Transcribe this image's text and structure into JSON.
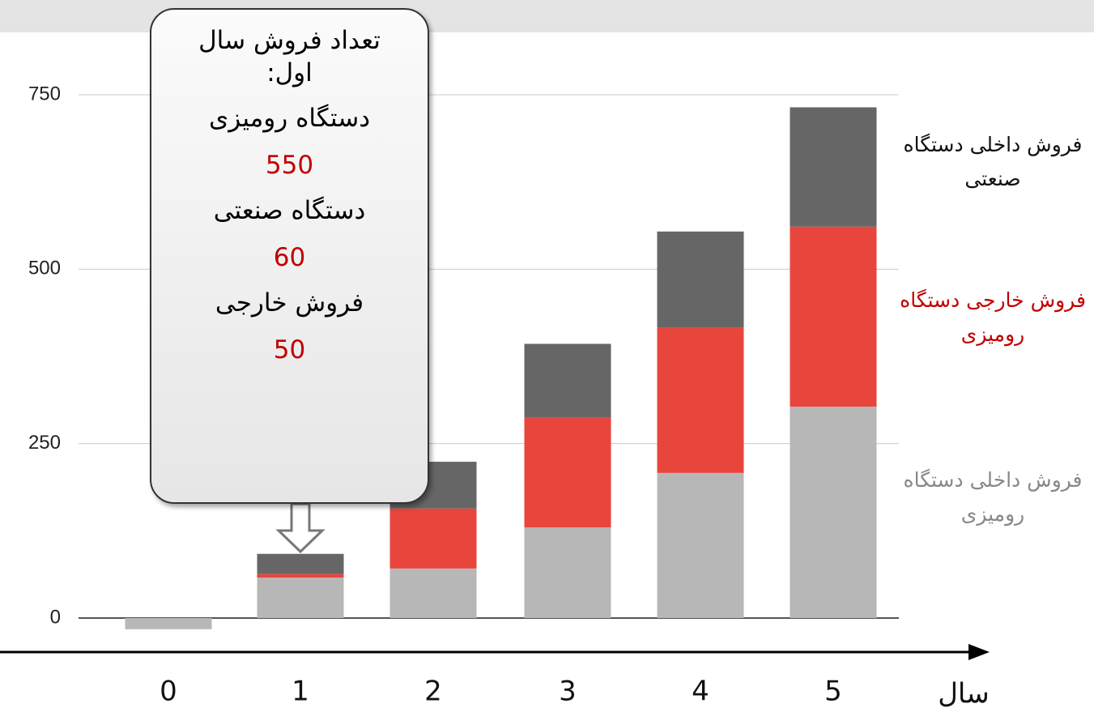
{
  "chart_data": {
    "type": "stacked-bar",
    "categories": [
      "0",
      "1",
      "2",
      "3",
      "4",
      "5"
    ],
    "x_label": "سال",
    "series": [
      {
        "name": "فروش داخلی دستگاه رومیزی",
        "color": "#b7b7b7",
        "values": [
          -16,
          58,
          71,
          130,
          208,
          303
        ]
      },
      {
        "name": "فروش خارجی دستگاه رومیزی",
        "color": "#e8453c",
        "values": [
          0,
          5,
          86,
          157,
          208,
          258
        ]
      },
      {
        "name": "فروش داخلی دستگاه صنعتی",
        "color": "#666666",
        "values": [
          0,
          29,
          67,
          106,
          138,
          171
        ]
      }
    ],
    "ylim": [
      -30,
      780
    ],
    "yticks": [
      0,
      250,
      500,
      750
    ],
    "grid": true,
    "annotation": {
      "title": "تعداد فروش سال اول:",
      "items": [
        {
          "label": "دستگاه رومیزی",
          "value": 550
        },
        {
          "label": "دستگاه صنعتی",
          "value": 60
        },
        {
          "label": "فروش خارجی",
          "value": 50
        }
      ]
    }
  }
}
